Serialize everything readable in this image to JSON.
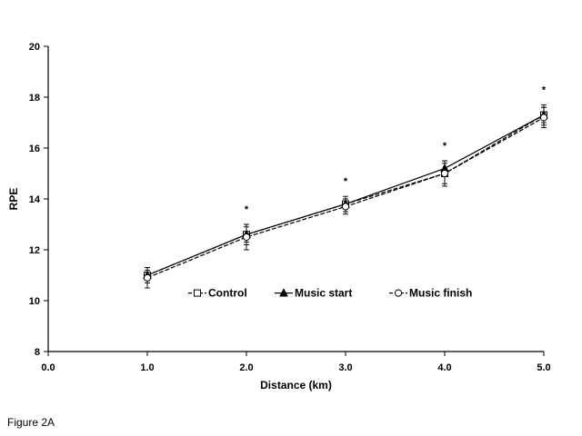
{
  "figure_caption": "Figure 2A",
  "chart_data": {
    "type": "line",
    "xlabel": "Distance (km)",
    "ylabel": "RPE",
    "xlim": [
      0,
      5
    ],
    "ylim": [
      8,
      20
    ],
    "x_ticks": [
      0,
      1,
      2,
      3,
      4,
      5
    ],
    "x_tick_labels": [
      "0.0",
      "1.0",
      "2.0",
      "3.0",
      "4.0",
      "5.0"
    ],
    "y_ticks": [
      8,
      10,
      12,
      14,
      16,
      18,
      20
    ],
    "y_tick_labels": [
      "8",
      "10",
      "12",
      "14",
      "16",
      "18",
      "20"
    ],
    "x": [
      1.0,
      2.0,
      3.0,
      4.0,
      5.0
    ],
    "series": [
      {
        "name": "Control",
        "marker": "open-square",
        "line": "dashed",
        "values": [
          11.0,
          12.6,
          13.8,
          15.0,
          17.3
        ],
        "error": [
          0.3,
          0.4,
          0.3,
          0.4,
          0.4
        ]
      },
      {
        "name": "Music start",
        "marker": "filled-triangle",
        "line": "solid",
        "values": [
          11.0,
          12.6,
          13.8,
          15.2,
          17.3
        ],
        "error": [
          0.2,
          0.3,
          0.2,
          0.3,
          0.3
        ]
      },
      {
        "name": "Music finish",
        "marker": "open-circle",
        "line": "dashed",
        "values": [
          10.9,
          12.5,
          13.7,
          15.0,
          17.2
        ],
        "error": [
          0.4,
          0.5,
          0.3,
          0.5,
          0.4
        ]
      }
    ],
    "significance_markers": [
      {
        "x": 2.0,
        "label": "*"
      },
      {
        "x": 3.0,
        "label": "*"
      },
      {
        "x": 4.0,
        "label": "*"
      },
      {
        "x": 5.0,
        "label": "*"
      }
    ],
    "legend_position": "inside-bottom-center",
    "grid": false
  }
}
